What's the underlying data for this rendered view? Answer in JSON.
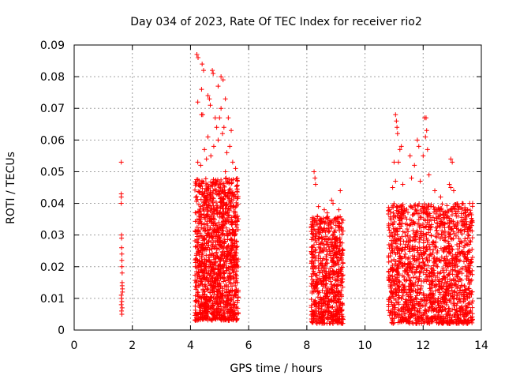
{
  "chart_data": {
    "type": "scatter",
    "title": "Day 034 of 2023, Rate Of TEC Index for receiver rio2",
    "xlabel": "GPS time / hours",
    "ylabel": "ROTI / TECUs",
    "xlim": [
      0,
      14
    ],
    "ylim": [
      0,
      0.09
    ],
    "xticks": [
      0,
      2,
      4,
      6,
      8,
      10,
      12,
      14
    ],
    "yticks": [
      0,
      0.01,
      0.02,
      0.03,
      0.04,
      0.05,
      0.06,
      0.07,
      0.08,
      0.09
    ],
    "grid": true,
    "marker": "+",
    "color": "#ff0000",
    "series": [
      {
        "name": "ROTI",
        "points": [
          [
            1.62,
            0.053
          ],
          [
            1.62,
            0.043
          ],
          [
            1.62,
            0.042
          ],
          [
            1.62,
            0.04
          ],
          [
            1.63,
            0.03
          ],
          [
            1.63,
            0.029
          ],
          [
            1.63,
            0.026
          ],
          [
            1.64,
            0.024
          ],
          [
            1.64,
            0.022
          ],
          [
            1.64,
            0.02
          ],
          [
            1.65,
            0.018
          ],
          [
            1.65,
            0.015
          ],
          [
            1.65,
            0.014
          ],
          [
            1.66,
            0.013
          ],
          [
            1.66,
            0.012
          ],
          [
            1.62,
            0.011
          ],
          [
            1.63,
            0.01
          ],
          [
            1.64,
            0.009
          ],
          [
            1.62,
            0.008
          ],
          [
            1.65,
            0.007
          ],
          [
            1.63,
            0.006
          ],
          [
            1.64,
            0.005
          ],
          [
            4.22,
            0.087
          ],
          [
            4.26,
            0.086
          ],
          [
            4.25,
            0.072
          ],
          [
            4.4,
            0.084
          ],
          [
            4.45,
            0.082
          ],
          [
            4.38,
            0.076
          ],
          [
            4.38,
            0.068
          ],
          [
            4.42,
            0.068
          ],
          [
            4.75,
            0.082
          ],
          [
            4.78,
            0.081
          ],
          [
            4.95,
            0.077
          ],
          [
            5.05,
            0.08
          ],
          [
            5.12,
            0.079
          ],
          [
            4.6,
            0.074
          ],
          [
            4.65,
            0.073
          ],
          [
            4.68,
            0.071
          ],
          [
            5.2,
            0.073
          ],
          [
            5.05,
            0.07
          ],
          [
            4.85,
            0.067
          ],
          [
            5.0,
            0.067
          ],
          [
            5.15,
            0.064
          ],
          [
            5.3,
            0.067
          ],
          [
            4.9,
            0.064
          ],
          [
            5.4,
            0.063
          ],
          [
            5.1,
            0.062
          ],
          [
            4.95,
            0.06
          ],
          [
            5.35,
            0.058
          ],
          [
            5.25,
            0.056
          ],
          [
            4.8,
            0.058
          ],
          [
            4.6,
            0.061
          ],
          [
            4.48,
            0.057
          ],
          [
            4.25,
            0.053
          ],
          [
            4.35,
            0.052
          ],
          [
            4.55,
            0.054
          ],
          [
            4.7,
            0.055
          ],
          [
            5.45,
            0.053
          ],
          [
            5.55,
            0.051
          ],
          [
            5.2,
            0.05
          ],
          [
            8.25,
            0.05
          ],
          [
            8.28,
            0.048
          ],
          [
            8.3,
            0.046
          ],
          [
            8.85,
            0.041
          ],
          [
            8.9,
            0.04
          ],
          [
            9.15,
            0.044
          ],
          [
            8.6,
            0.038
          ],
          [
            8.7,
            0.037
          ],
          [
            8.4,
            0.039
          ],
          [
            9.1,
            0.038
          ],
          [
            11.05,
            0.068
          ],
          [
            11.08,
            0.066
          ],
          [
            11.1,
            0.064
          ],
          [
            11.12,
            0.062
          ],
          [
            12.05,
            0.067
          ],
          [
            12.1,
            0.067
          ],
          [
            12.12,
            0.063
          ],
          [
            12.08,
            0.061
          ],
          [
            12.15,
            0.057
          ],
          [
            11.25,
            0.058
          ],
          [
            11.2,
            0.057
          ],
          [
            11.55,
            0.055
          ],
          [
            11.7,
            0.052
          ],
          [
            11.8,
            0.06
          ],
          [
            11.85,
            0.058
          ],
          [
            12.0,
            0.055
          ],
          [
            12.2,
            0.049
          ],
          [
            12.95,
            0.054
          ],
          [
            13.0,
            0.053
          ],
          [
            12.9,
            0.046
          ],
          [
            12.95,
            0.045
          ],
          [
            13.05,
            0.044
          ],
          [
            11.0,
            0.053
          ],
          [
            11.15,
            0.053
          ],
          [
            10.95,
            0.045
          ],
          [
            11.05,
            0.047
          ],
          [
            11.3,
            0.046
          ],
          [
            11.6,
            0.048
          ],
          [
            11.9,
            0.047
          ],
          [
            12.4,
            0.044
          ],
          [
            12.6,
            0.042
          ],
          [
            13.6,
            0.04
          ],
          [
            13.7,
            0.04
          ],
          [
            13.45,
            0.037
          ],
          [
            13.2,
            0.036
          ]
        ],
        "clusters": [
          {
            "x_range": [
              4.15,
              5.65
            ],
            "y_range": [
              0.003,
              0.048
            ],
            "count": 1300
          },
          {
            "x_range": [
              8.15,
              9.25
            ],
            "y_range": [
              0.002,
              0.036
            ],
            "count": 700
          },
          {
            "x_range": [
              10.8,
              13.7
            ],
            "y_range": [
              0.002,
              0.04
            ],
            "count": 1600
          }
        ]
      }
    ]
  }
}
